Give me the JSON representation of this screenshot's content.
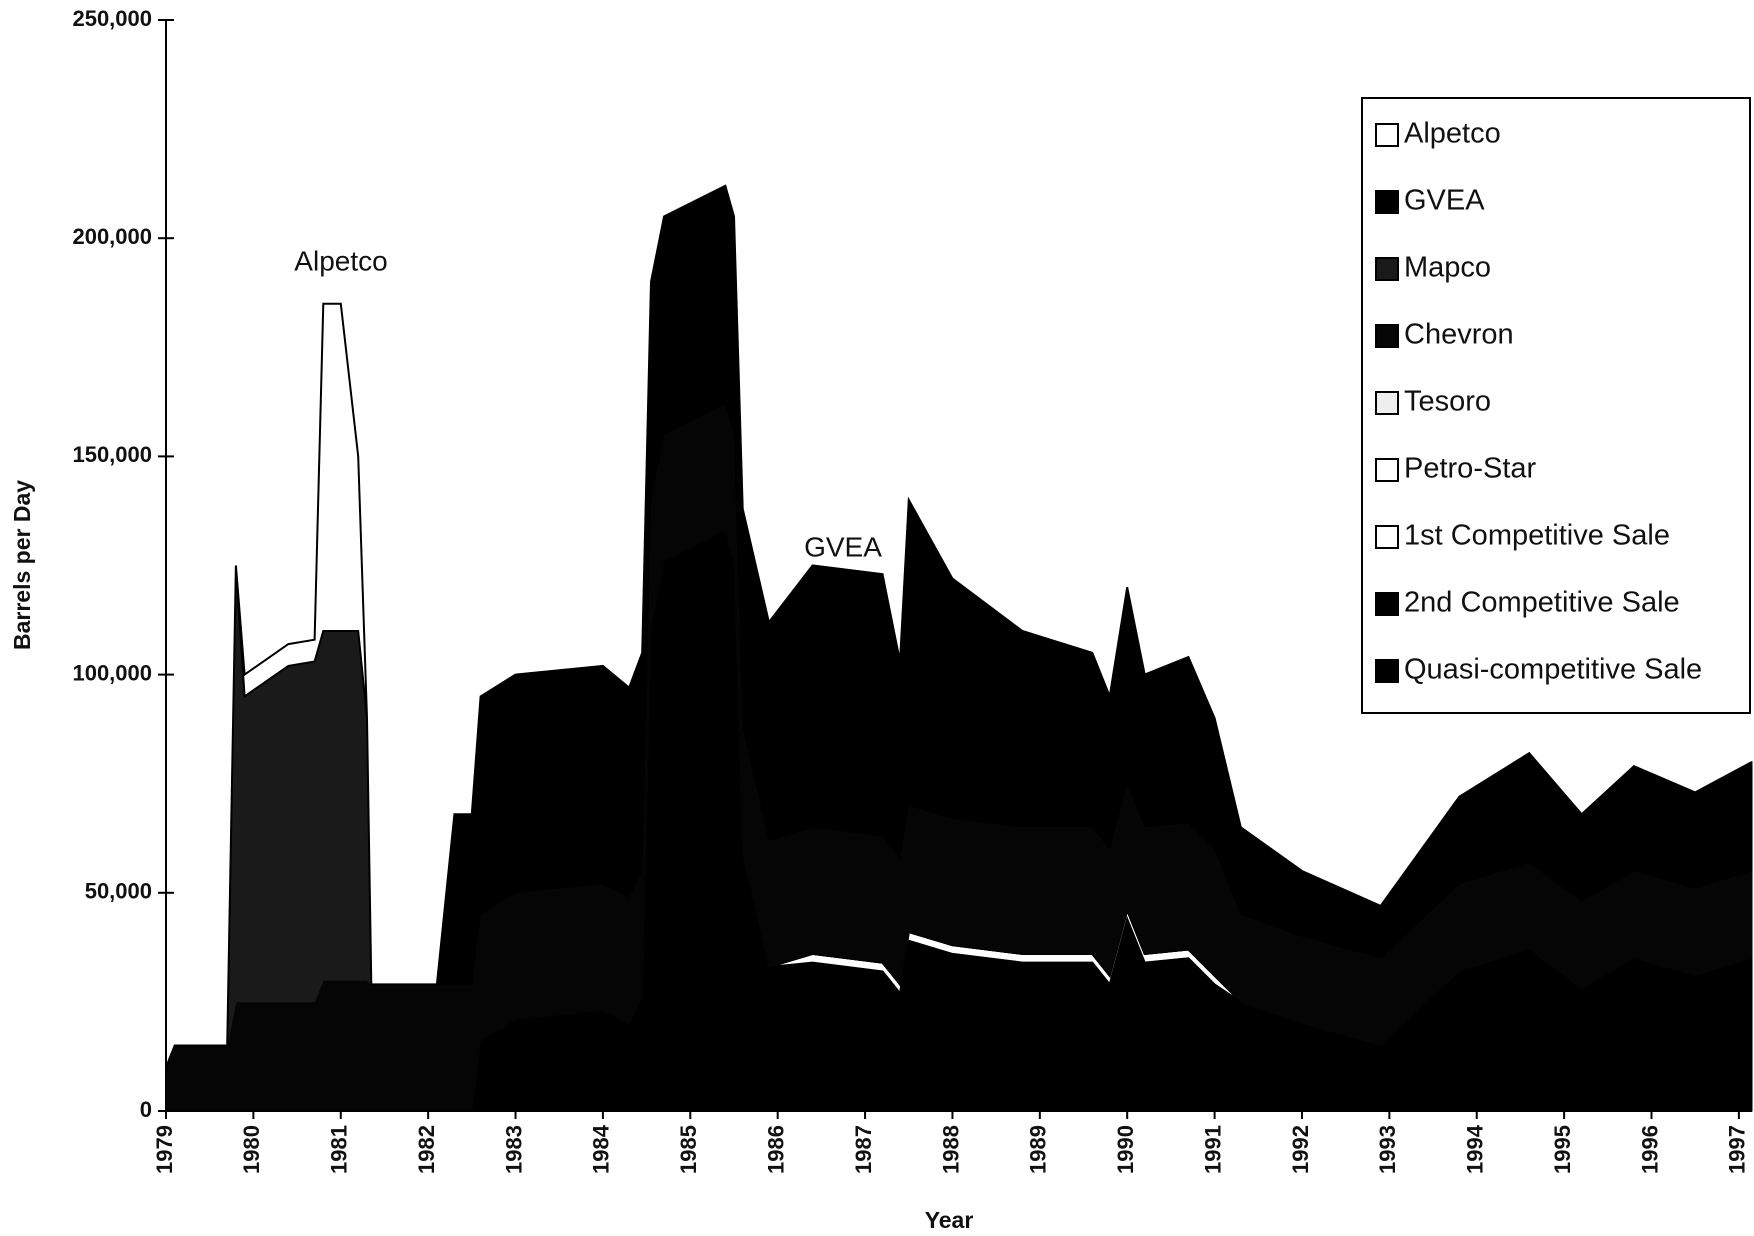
{
  "chart_data": {
    "type": "stacked_area",
    "y_label": "Barrels per Day",
    "x_label": "Year",
    "annotations": [
      "Alpetco",
      "GVEA"
    ],
    "xlim": [
      1979,
      1997.15
    ],
    "xticks": [
      1979,
      1980,
      1981,
      1982,
      1983,
      1984,
      1985,
      1986,
      1987,
      1988,
      1989,
      1990,
      1991,
      1992,
      1993,
      1994,
      1995,
      1996,
      1997
    ],
    "ylim": [
      0,
      250000
    ],
    "yticks": [
      0,
      {
        "value": 50000,
        "label": "50,000"
      },
      {
        "value": 100000,
        "label": "100,000"
      },
      {
        "value": 150000,
        "label": "150,000"
      },
      {
        "value": 200000,
        "label": "200,000"
      },
      {
        "value": 250000,
        "label": "250,000"
      }
    ],
    "grid": false,
    "legend": "upper right",
    "x": [
      1979.0,
      1979.1,
      1979.7,
      1979.8,
      1979.9,
      1980.4,
      1980.7,
      1980.8,
      1981.0,
      1981.2,
      1981.3,
      1981.35,
      1982.1,
      1982.3,
      1982.5,
      1982.6,
      1983.0,
      1984.0,
      1984.3,
      1984.45,
      1984.55,
      1984.7,
      1985.4,
      1985.5,
      1985.6,
      1985.9,
      1986.4,
      1987.2,
      1987.4,
      1987.5,
      1988.0,
      1988.8,
      1989.6,
      1989.8,
      1990.0,
      1990.2,
      1990.7,
      1991.0,
      1991.3,
      1992.0,
      1992.9,
      1993.8,
      1994.6,
      1995.2,
      1995.8,
      1996.5,
      1997.15
    ],
    "series": [
      {
        "name": "Alpetco",
        "color": "#ffffff",
        "values": [
          0,
          0,
          0,
          0,
          5000,
          5000,
          5000,
          75000,
          75000,
          40000,
          0,
          0,
          0,
          0,
          0,
          0,
          0,
          0,
          0,
          0,
          0,
          0,
          0,
          0,
          0,
          0,
          0,
          0,
          0,
          0,
          0,
          0,
          0,
          0,
          0,
          0,
          0,
          0,
          0,
          0,
          0,
          0,
          0,
          0,
          0,
          0,
          0
        ]
      },
      {
        "name": "GVEA",
        "color": "#000000",
        "values": [
          0,
          0,
          0,
          0,
          0,
          0,
          0,
          0,
          0,
          0,
          0,
          0,
          0,
          39000,
          39000,
          50000,
          50000,
          50000,
          48000,
          50000,
          50000,
          50000,
          50000,
          50000,
          50000,
          50000,
          60000,
          60000,
          45000,
          70000,
          55000,
          45000,
          40000,
          35000,
          45000,
          35000,
          38000,
          30000,
          20000,
          15000,
          12000,
          20000,
          25000,
          20000,
          24000,
          22000,
          25000
        ]
      },
      {
        "name": "Mapco",
        "color": "#1a1a1a",
        "values": [
          0,
          0,
          0,
          100000,
          70000,
          77000,
          78000,
          80000,
          80000,
          80000,
          60000,
          0,
          0,
          0,
          0,
          0,
          0,
          0,
          0,
          0,
          0,
          0,
          0,
          0,
          0,
          0,
          0,
          0,
          0,
          0,
          0,
          0,
          0,
          0,
          0,
          0,
          0,
          0,
          0,
          0,
          0,
          0,
          0,
          0,
          0,
          0,
          0
        ]
      },
      {
        "name": "Chevron",
        "color": "#050505",
        "values": [
          10000,
          15000,
          15000,
          25000,
          25000,
          25000,
          25000,
          30000,
          30000,
          30000,
          30000,
          29000,
          29000,
          29000,
          29000,
          29000,
          29000,
          29000,
          29000,
          29000,
          29000,
          29000,
          29000,
          29000,
          29000,
          29000,
          29000,
          29000,
          29000,
          29000,
          29000,
          29000,
          29000,
          29000,
          29000,
          29000,
          29000,
          29000,
          20000,
          20000,
          20000,
          20000,
          20000,
          20000,
          20000,
          20000,
          20000
        ]
      },
      {
        "name": "Tesoro",
        "color": "#eeeeee",
        "values": [
          0,
          0,
          0,
          0,
          0,
          0,
          0,
          0,
          0,
          0,
          0,
          0,
          0,
          0,
          0,
          0,
          0,
          0,
          0,
          0,
          0,
          0,
          0,
          0,
          0,
          0,
          0,
          0,
          0,
          0,
          0,
          0,
          0,
          0,
          0,
          0,
          0,
          0,
          0,
          0,
          0,
          0,
          0,
          0,
          0,
          0,
          0
        ]
      },
      {
        "name": "Petro-Star",
        "color": "#ffffff",
        "values": [
          0,
          0,
          0,
          0,
          0,
          0,
          0,
          0,
          0,
          0,
          0,
          0,
          0,
          0,
          0,
          0,
          0,
          0,
          0,
          0,
          0,
          0,
          0,
          0,
          0,
          0,
          0,
          0,
          0,
          0,
          0,
          0,
          0,
          0,
          0,
          0,
          0,
          0,
          0,
          0,
          0,
          0,
          0,
          0,
          0,
          0,
          0
        ]
      },
      {
        "name": "1st Competitive Sale",
        "color": "#ffffff",
        "values": [
          0,
          0,
          0,
          0,
          0,
          0,
          0,
          0,
          0,
          0,
          0,
          0,
          0,
          0,
          0,
          0,
          0,
          0,
          0,
          0,
          0,
          0,
          0,
          0,
          0,
          0,
          2000,
          2000,
          2000,
          2000,
          2000,
          2000,
          2000,
          2000,
          2000,
          2000,
          2000,
          2000,
          0,
          0,
          0,
          0,
          0,
          0,
          0,
          0,
          0
        ]
      },
      {
        "name": "2nd Competitive Sale",
        "color": "#000000",
        "values": [
          0,
          0,
          0,
          0,
          0,
          0,
          0,
          0,
          0,
          0,
          0,
          0,
          0,
          0,
          0,
          0,
          0,
          0,
          0,
          0,
          85000,
          100000,
          105000,
          98000,
          31000,
          0,
          0,
          0,
          0,
          0,
          0,
          0,
          0,
          0,
          0,
          0,
          0,
          0,
          0,
          0,
          0,
          0,
          0,
          0,
          0,
          0,
          0
        ]
      },
      {
        "name": "Quasi-competitive Sale",
        "color": "#000000",
        "values": [
          0,
          0,
          0,
          0,
          0,
          0,
          0,
          0,
          0,
          0,
          0,
          0,
          0,
          0,
          0,
          16000,
          21000,
          23000,
          20000,
          26000,
          26000,
          26000,
          28000,
          28000,
          28000,
          33000,
          34000,
          32000,
          27000,
          39000,
          36000,
          34000,
          34000,
          29000,
          44000,
          34000,
          35000,
          29000,
          25000,
          20000,
          15000,
          32000,
          37000,
          28000,
          35000,
          31000,
          35000
        ]
      }
    ]
  }
}
